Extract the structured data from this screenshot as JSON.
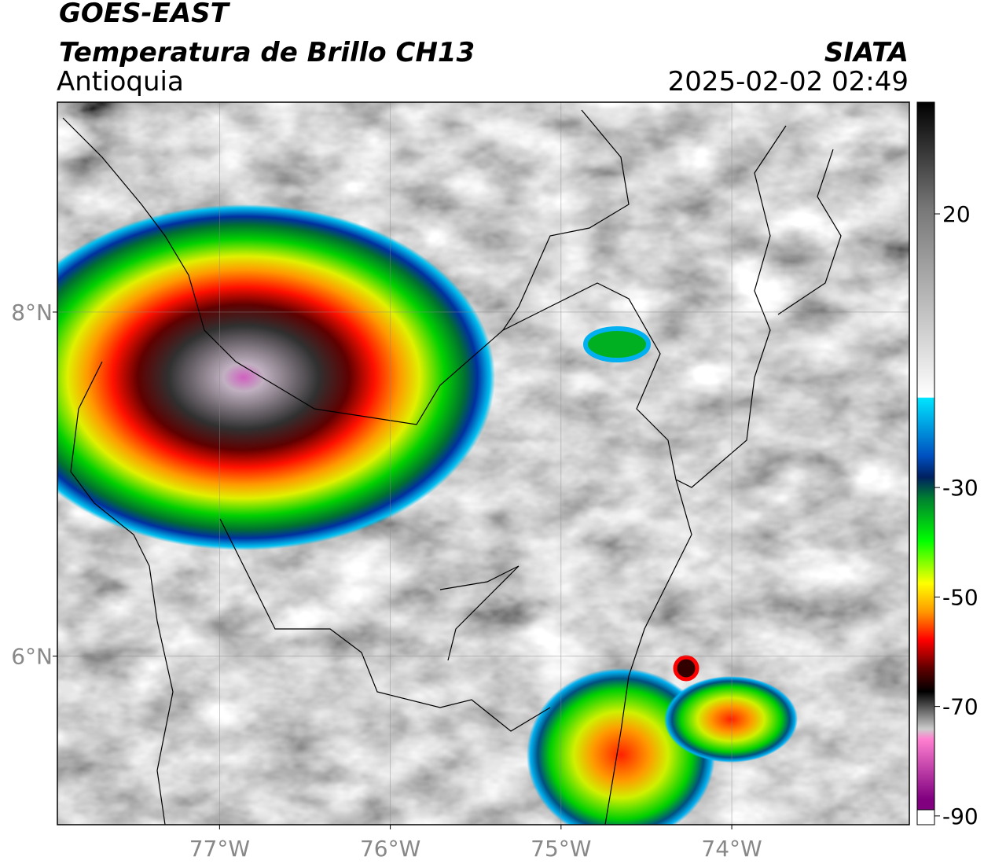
{
  "header": {
    "title": "GOES-EAST",
    "subtitle": "Temperatura de Brillo CH13",
    "region": "Antioquia",
    "source": "SIATA",
    "datetime": "2025-02-02 02:49"
  },
  "map": {
    "xlim": [
      -77.95,
      -72.96
    ],
    "ylim": [
      5.02,
      9.22
    ],
    "xticks": [
      {
        "value": -77,
        "label": "77°W"
      },
      {
        "value": -76,
        "label": "76°W"
      },
      {
        "value": -75,
        "label": "75°W"
      },
      {
        "value": -74,
        "label": "74°W"
      }
    ],
    "yticks": [
      {
        "value": 8,
        "label": "8°N"
      },
      {
        "value": 6,
        "label": "6°N"
      }
    ],
    "grid": true
  },
  "colorbar": {
    "lim": [
      -91.6,
      40.4
    ],
    "ticks": [
      20,
      -30,
      -50,
      -70,
      -90
    ]
  }
}
